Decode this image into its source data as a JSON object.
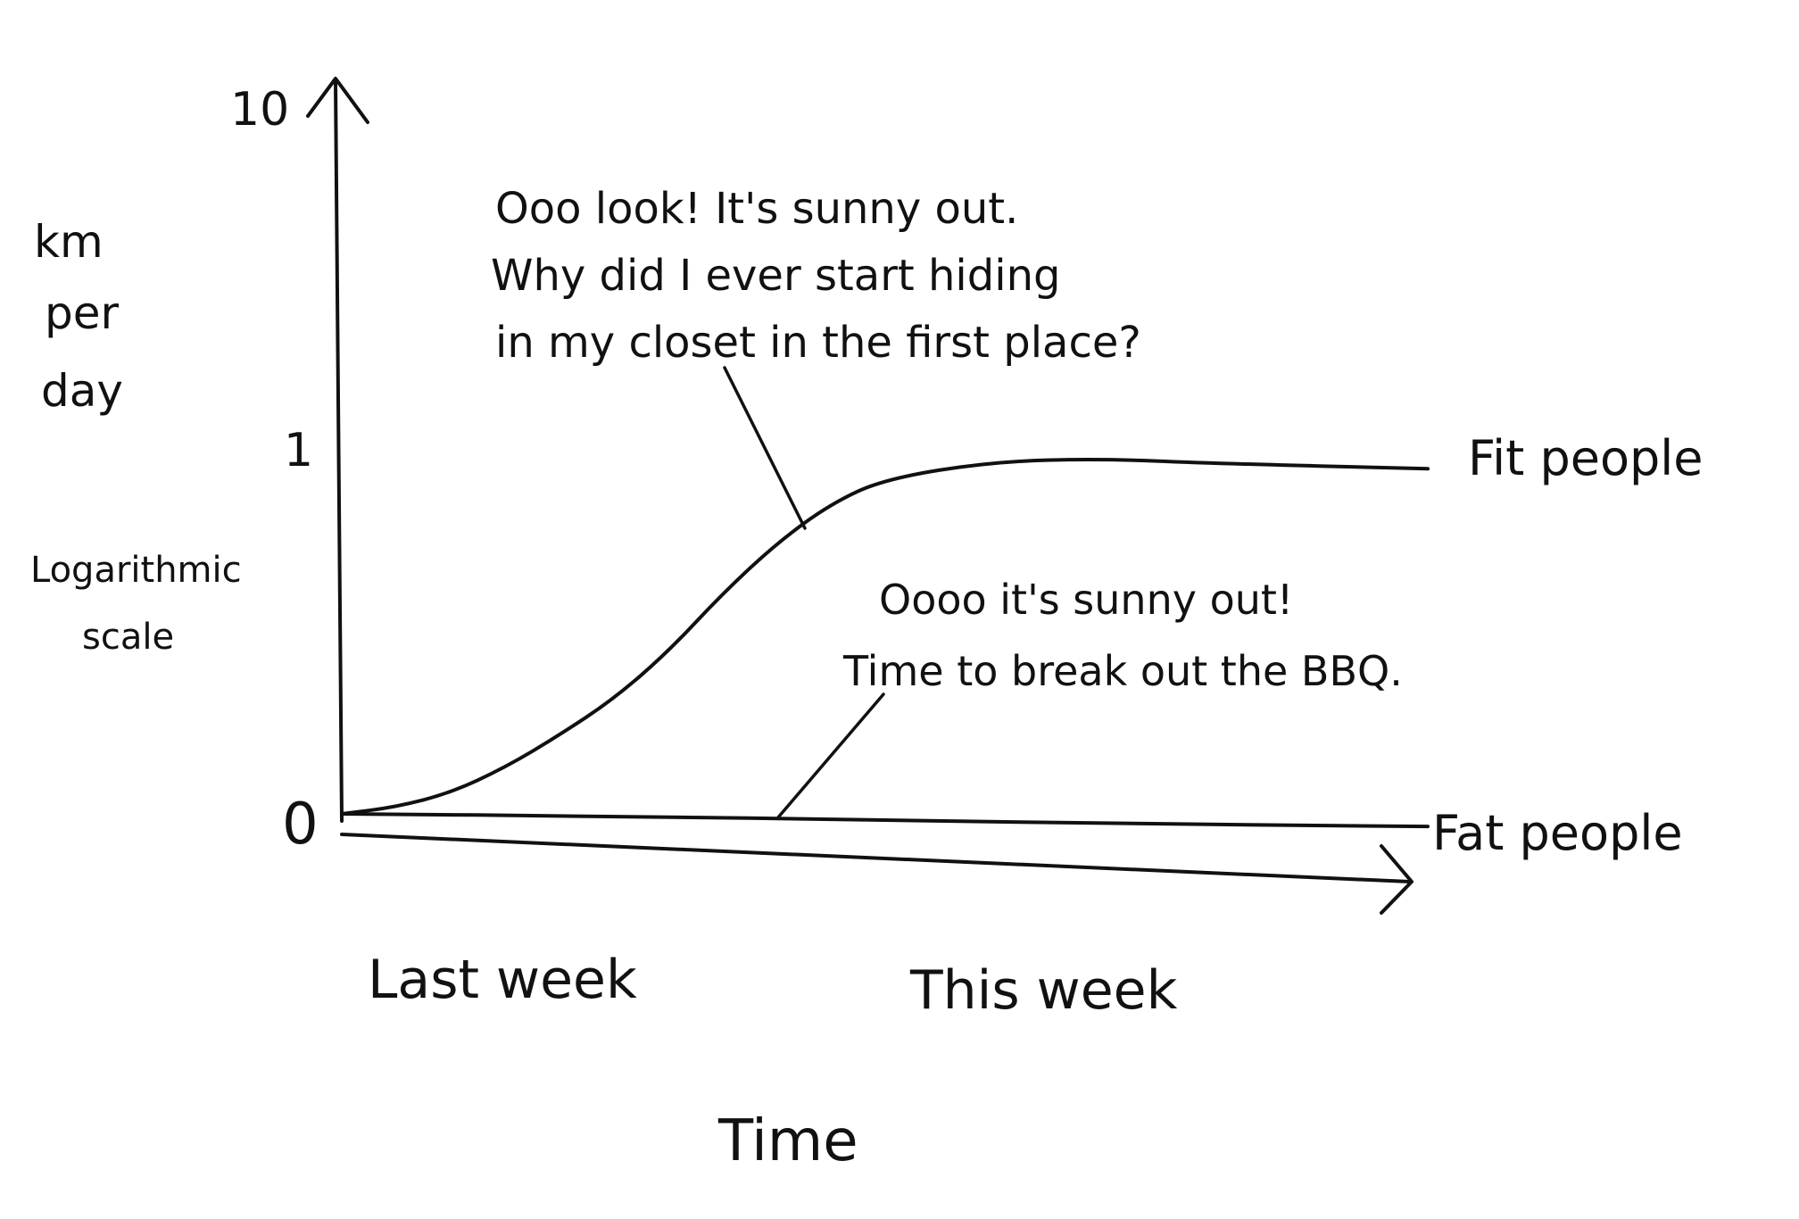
{
  "chart_data": {
    "type": "line",
    "title": "",
    "xlabel": "Time",
    "ylabel_lines": [
      "km",
      "per",
      "day"
    ],
    "ylabel_note_lines": [
      "Logarithmic",
      "scale"
    ],
    "y_ticks": [
      {
        "value": 0,
        "label": "0"
      },
      {
        "value": 1,
        "label": "1"
      },
      {
        "value": 10,
        "label": "10"
      }
    ],
    "x_ticks": [
      {
        "value": 0.25,
        "label": "Last week"
      },
      {
        "value": 0.7,
        "label": "This week"
      }
    ],
    "xlim": [
      0,
      1
    ],
    "ylim": [
      0,
      10
    ],
    "series": [
      {
        "name": "Fit people",
        "points": [
          [
            0.0,
            0.0
          ],
          [
            0.05,
            0.02
          ],
          [
            0.1,
            0.06
          ],
          [
            0.15,
            0.13
          ],
          [
            0.2,
            0.22
          ],
          [
            0.25,
            0.32
          ],
          [
            0.3,
            0.45
          ],
          [
            0.35,
            0.61
          ],
          [
            0.4,
            0.75
          ],
          [
            0.45,
            0.86
          ],
          [
            0.5,
            0.93
          ],
          [
            0.6,
            0.98
          ],
          [
            0.7,
            0.99
          ],
          [
            0.8,
            0.98
          ],
          [
            1.0,
            0.97
          ]
        ]
      },
      {
        "name": "Fat people",
        "points": [
          [
            0.0,
            0.0
          ],
          [
            0.25,
            0.0
          ],
          [
            0.5,
            -0.005
          ],
          [
            0.75,
            -0.01
          ],
          [
            1.0,
            -0.01
          ]
        ]
      }
    ],
    "annotations": [
      {
        "lines": [
          "Ooo look! It's sunny out.",
          "Why did I ever start hiding",
          "in my closet in the first place?"
        ],
        "target_series": "Fit people",
        "target_x": 0.44
      },
      {
        "lines": [
          "Oooo it's sunny out!",
          "Time to break out the BBQ."
        ],
        "target_series": "Fat people",
        "target_x": 0.41
      }
    ]
  }
}
